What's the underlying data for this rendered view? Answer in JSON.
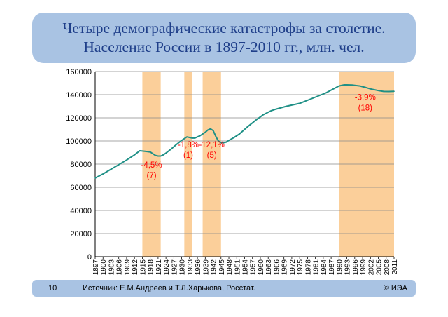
{
  "title": {
    "line1": "Четыре демографические катастрофы за столетие.",
    "line2": "Население России в 1897-2010 гг., млн. чел."
  },
  "footer": {
    "slide_number": "10",
    "source": "Источник: Е.М.Андреев и Т.Л.Харькова, Росстат.",
    "copyright": "© ИЭА"
  },
  "chart_data": {
    "type": "line",
    "title": "",
    "xlabel": "",
    "ylabel": "",
    "xlim": [
      1897,
      2011
    ],
    "ylim": [
      0,
      160000
    ],
    "yticks": [
      0,
      20000,
      40000,
      60000,
      80000,
      100000,
      120000,
      140000,
      160000
    ],
    "xticks": [
      1897,
      1900,
      1903,
      1906,
      1909,
      1912,
      1915,
      1918,
      1921,
      1924,
      1927,
      1930,
      1933,
      1936,
      1939,
      1942,
      1945,
      1948,
      1951,
      1954,
      1957,
      1960,
      1963,
      1966,
      1969,
      1972,
      1975,
      1978,
      1981,
      1984,
      1987,
      1990,
      1993,
      1996,
      1999,
      2002,
      2005,
      2008,
      2011
    ],
    "grid": true,
    "line_color": "#1f9086",
    "band_color": "#fbcf9a",
    "series": [
      {
        "x": [
          1897,
          1900,
          1903,
          1906,
          1909,
          1912,
          1914,
          1916,
          1918,
          1919,
          1920,
          1921,
          1922,
          1923,
          1924,
          1926,
          1928,
          1930,
          1931,
          1932,
          1933,
          1934,
          1935,
          1936,
          1937,
          1938,
          1939,
          1940,
          1941,
          1942,
          1943,
          1944,
          1945,
          1946,
          1947,
          1948,
          1950,
          1952,
          1955,
          1958,
          1961,
          1964,
          1966,
          1970,
          1975,
          1980,
          1985,
          1990,
          1992,
          1993,
          1995,
          1998,
          2000,
          2002,
          2005,
          2007,
          2009,
          2011
        ],
        "y": [
          68000,
          71500,
          75500,
          79500,
          83500,
          88000,
          91500,
          91000,
          90500,
          89000,
          87500,
          87000,
          87000,
          88000,
          89500,
          93000,
          97000,
          100500,
          102000,
          103500,
          103000,
          102500,
          102500,
          103500,
          104500,
          106000,
          107500,
          109500,
          110500,
          109000,
          104000,
          100000,
          98500,
          98500,
          99000,
          100500,
          103000,
          106000,
          112000,
          117500,
          122500,
          126000,
          127500,
          130000,
          132500,
          137000,
          141500,
          147500,
          148500,
          148500,
          148300,
          147500,
          146300,
          145000,
          143500,
          142800,
          142700,
          142900
        ]
      }
    ],
    "bands": [
      [
        1915,
        1922
      ],
      [
        1931,
        1934
      ],
      [
        1938,
        1945
      ],
      [
        1990,
        2011
      ]
    ],
    "annotations": [
      {
        "text": "-4,5%",
        "x": 1918.5,
        "y": 77000
      },
      {
        "text": "(7)",
        "x": 1918.5,
        "y": 68000
      },
      {
        "text": "-1,8%",
        "x": 1932.5,
        "y": 94500
      },
      {
        "text": "(1)",
        "x": 1932.5,
        "y": 85500
      },
      {
        "text": "-12,1%",
        "x": 1941.5,
        "y": 94500
      },
      {
        "text": "(5)",
        "x": 1941.5,
        "y": 85500
      },
      {
        "text": "-3,9%",
        "x": 2000,
        "y": 135500
      },
      {
        "text": "(18)",
        "x": 2000,
        "y": 126500
      }
    ],
    "annotation_color": "#ff0000"
  }
}
